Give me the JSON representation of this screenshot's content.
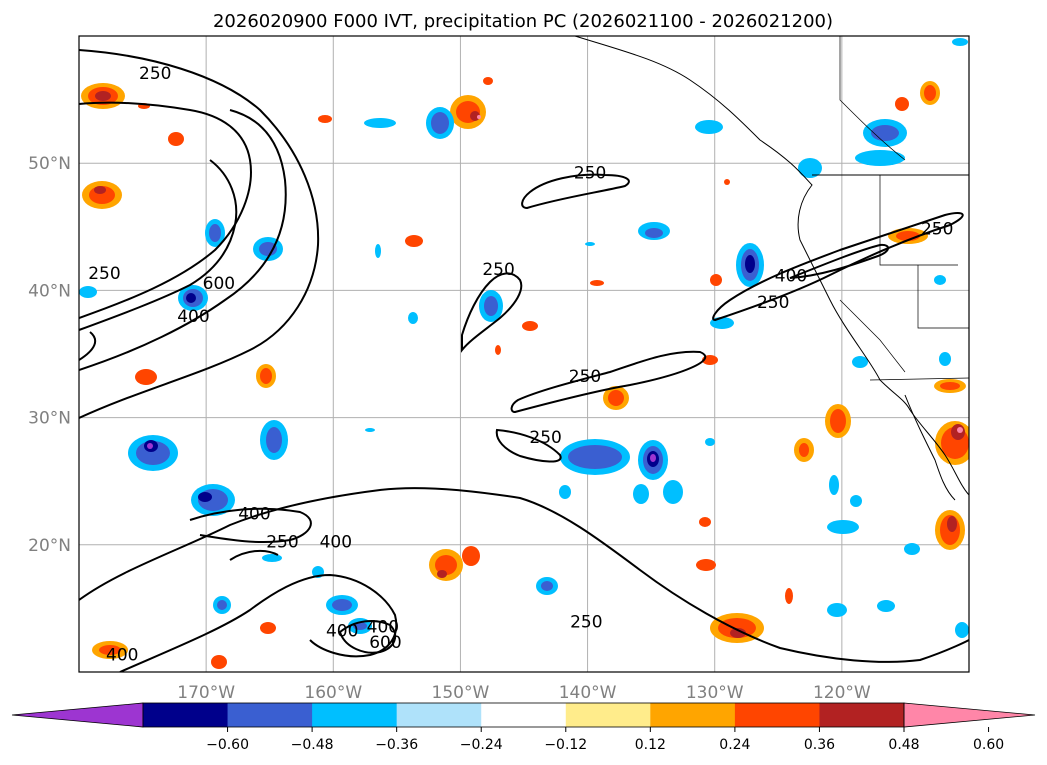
{
  "title": "2026020900 F000 IVT, precipitation PC (2026021100 - 2026021200)",
  "map": {
    "lon_range": [
      -180,
      -110
    ],
    "lat_range": [
      10,
      60
    ],
    "lon_ticks": [
      {
        "lon": -170,
        "label": "170°W"
      },
      {
        "lon": -160,
        "label": "160°W"
      },
      {
        "lon": -150,
        "label": "150°W"
      },
      {
        "lon": -140,
        "label": "140°W"
      },
      {
        "lon": -130,
        "label": "130°W"
      },
      {
        "lon": -120,
        "label": "120°W"
      }
    ],
    "lat_ticks": [
      {
        "lat": 20,
        "label": "20°N"
      },
      {
        "lat": 30,
        "label": "30°N"
      },
      {
        "lat": 40,
        "label": "40°N"
      },
      {
        "lat": 50,
        "label": "50°N"
      }
    ],
    "contour_labels": [
      {
        "text": "250",
        "lon": -174,
        "lat": 56.6
      },
      {
        "text": "250",
        "lon": -178,
        "lat": 40.9
      },
      {
        "text": "600",
        "lon": -169,
        "lat": 40.1
      },
      {
        "text": "400",
        "lon": -171,
        "lat": 37.5
      },
      {
        "text": "250",
        "lon": -139.8,
        "lat": 48.8
      },
      {
        "text": "250",
        "lon": -147,
        "lat": 41.2
      },
      {
        "text": "250",
        "lon": -140.2,
        "lat": 32.8
      },
      {
        "text": "250",
        "lon": -143.3,
        "lat": 28.0
      },
      {
        "text": "400",
        "lon": -124,
        "lat": 40.7
      },
      {
        "text": "250",
        "lon": -125.4,
        "lat": 38.6
      },
      {
        "text": "250",
        "lon": -112.5,
        "lat": 44.4
      },
      {
        "text": "400",
        "lon": -166.2,
        "lat": 22.0
      },
      {
        "text": "250",
        "lon": -164,
        "lat": 19.8
      },
      {
        "text": "400",
        "lon": -159.8,
        "lat": 19.8
      },
      {
        "text": "400",
        "lon": -159.3,
        "lat": 12.8
      },
      {
        "text": "400",
        "lon": -156.1,
        "lat": 13.1
      },
      {
        "text": "600",
        "lon": -155.9,
        "lat": 11.9
      },
      {
        "text": "250",
        "lon": -140.1,
        "lat": 13.5
      },
      {
        "text": "400",
        "lon": -176.6,
        "lat": 10.9
      }
    ],
    "ivt_contour_levels": [
      250,
      400,
      600
    ]
  },
  "colorbar": {
    "ticks": [
      "−0.60",
      "−0.48",
      "−0.36",
      "−0.24",
      "−0.12",
      "0.12",
      "0.24",
      "0.36",
      "0.48",
      "0.60"
    ],
    "colors": [
      "#9d35d1",
      "#00008b",
      "#3a5fd1",
      "#00bfff",
      "#afe2fa",
      "#ffffff",
      "#ffec8b",
      "#ffa500",
      "#ff4500",
      "#b22222",
      "#ff86a8"
    ]
  },
  "chart_data": {
    "type": "map",
    "title": "2026020900 F000 IVT, precipitation PC (2026021100 - 2026021200)",
    "variables": [
      "IVT contours (kg m-1 s-1)",
      "precipitation PC (shaded)"
    ],
    "ivt_contour_levels": [
      250,
      400,
      600
    ],
    "precip_pc_levels": [
      -0.6,
      -0.48,
      -0.36,
      -0.24,
      -0.12,
      0.12,
      0.24,
      0.36,
      0.48,
      0.6
    ],
    "extent": {
      "lon": [
        -180,
        -110
      ],
      "lat": [
        10,
        60
      ]
    }
  }
}
